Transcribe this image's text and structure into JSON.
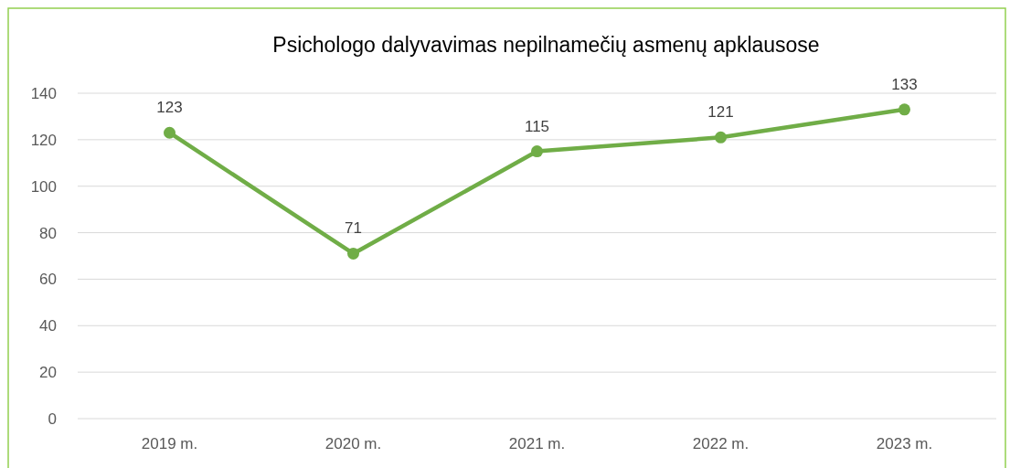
{
  "chart_data": {
    "type": "line",
    "title": "Psichologo dalyvavimas nepilnamečių asmenų apklausose",
    "categories": [
      "2019 m.",
      "2020 m.",
      "2021 m.",
      "2022 m.",
      "2023 m."
    ],
    "series": [
      {
        "color": "#70ad47",
        "values": [
          123,
          71,
          115,
          121,
          133
        ]
      }
    ],
    "ylim": [
      0,
      140
    ],
    "yticks": [
      0,
      20,
      40,
      60,
      80,
      100,
      120,
      140
    ],
    "grid": "y",
    "marker": "circle",
    "data_labels": true
  }
}
